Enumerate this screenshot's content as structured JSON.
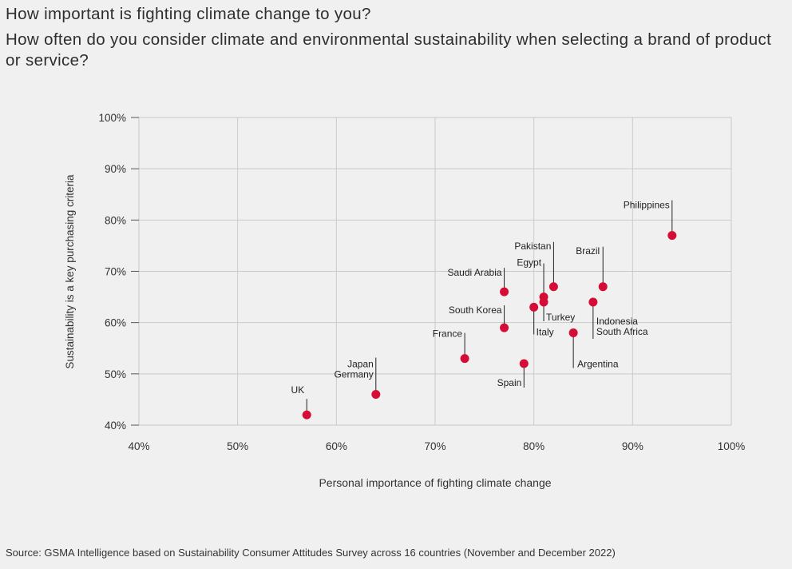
{
  "titles": {
    "line1": "How important is fighting climate change to you?",
    "line2": "How often do you consider climate and environmental sustainability when selecting a brand of product or service?"
  },
  "source": "Source: GSMA Intelligence based on Sustainability Consumer Attitudes Survey across 16 countries (November and December 2022)",
  "colors": {
    "point": "#d50c35",
    "grid": "#c9c9c9",
    "background": "#f0f0f0"
  },
  "chart_data": {
    "type": "scatter",
    "xlabel": "Personal importance of fighting climate change",
    "ylabel": "Sustainability is a key purchasing criteria",
    "xlim": [
      40,
      100
    ],
    "ylim": [
      40,
      100
    ],
    "x_ticks": [
      "40%",
      "50%",
      "60%",
      "70%",
      "80%",
      "90%",
      "100%"
    ],
    "y_ticks": [
      "40%",
      "50%",
      "60%",
      "70%",
      "80%",
      "90%",
      "100%"
    ],
    "grid": true,
    "legend": "none",
    "points": [
      {
        "label": "UK",
        "x": 57,
        "y": 42
      },
      {
        "label": "Japan",
        "x": 64,
        "y": 46
      },
      {
        "label": "Germany",
        "x": 64,
        "y": 46
      },
      {
        "label": "France",
        "x": 73,
        "y": 53
      },
      {
        "label": "South Korea",
        "x": 77,
        "y": 59
      },
      {
        "label": "Saudi Arabia",
        "x": 77,
        "y": 66
      },
      {
        "label": "Spain",
        "x": 79,
        "y": 52
      },
      {
        "label": "Italy",
        "x": 80,
        "y": 63
      },
      {
        "label": "Turkey",
        "x": 81,
        "y": 64
      },
      {
        "label": "Egypt",
        "x": 81,
        "y": 65
      },
      {
        "label": "Pakistan",
        "x": 82,
        "y": 67
      },
      {
        "label": "Argentina",
        "x": 84,
        "y": 58
      },
      {
        "label": "Indonesia",
        "x": 86,
        "y": 64
      },
      {
        "label": "South Africa",
        "x": 86,
        "y": 64
      },
      {
        "label": "Brazil",
        "x": 87,
        "y": 67
      },
      {
        "label": "Philippines",
        "x": 94,
        "y": 77
      }
    ]
  }
}
